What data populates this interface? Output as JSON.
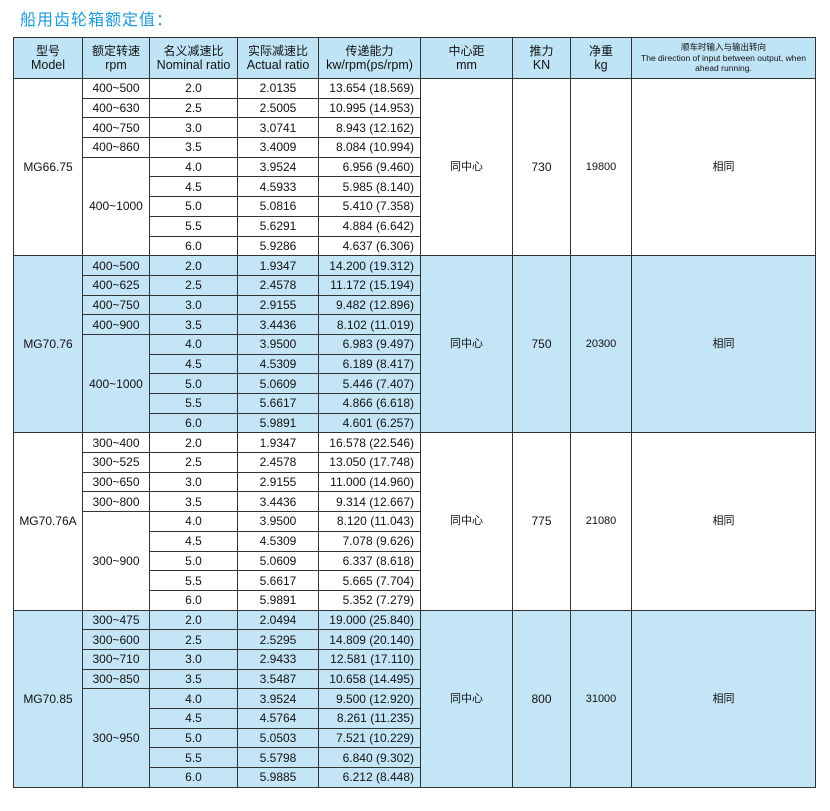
{
  "title": "船用齿轮箱额定值：",
  "header": [
    {
      "cn": "型号",
      "en": "Model"
    },
    {
      "cn": "额定转速",
      "en": "rpm"
    },
    {
      "cn": "名义减速比",
      "en": "Nominal ratio"
    },
    {
      "cn": "实际减速比",
      "en": "Actual ratio"
    },
    {
      "cn": "传递能力",
      "en": "kw/rpm(ps/rpm)"
    },
    {
      "cn": "中心距",
      "en": "mm"
    },
    {
      "cn": "推力",
      "en": "KN"
    },
    {
      "cn": "净重",
      "en": "kg"
    },
    {
      "cn": "顺车时输入与输出转向",
      "en": "The direction of input between output, when ahead running."
    }
  ],
  "blocks": [
    {
      "model": "MG66.75",
      "center": "同中心",
      "thrust": "730",
      "weight": "19800",
      "direction": "相同",
      "bg": "#ffffff",
      "rpm": [
        {
          "label": "400~500",
          "span": 1
        },
        {
          "label": "400~630",
          "span": 1
        },
        {
          "label": "400~750",
          "span": 1
        },
        {
          "label": "400~860",
          "span": 1
        },
        {
          "label": "400~1000",
          "span": 5
        }
      ],
      "rows": [
        [
          "2.0",
          "2.0135",
          "13.654 (18.569)"
        ],
        [
          "2.5",
          "2.5005",
          "10.995 (14.953)"
        ],
        [
          "3.0",
          "3.0741",
          "8.943 (12.162)"
        ],
        [
          "3.5",
          "3.4009",
          "8.084 (10.994)"
        ],
        [
          "4.0",
          "3.9524",
          "6.956 (9.460)"
        ],
        [
          "4.5",
          "4.5933",
          "5.985 (8.140)"
        ],
        [
          "5.0",
          "5.0816",
          "5.410 (7.358)"
        ],
        [
          "5.5",
          "5.6291",
          "4.884 (6.642)"
        ],
        [
          "6.0",
          "5.9286",
          "4.637 (6.306)"
        ]
      ]
    },
    {
      "model": "MG70.76",
      "center": "同中心",
      "thrust": "750",
      "weight": "20300",
      "direction": "相同",
      "bg": "#c4e5f6",
      "rpm": [
        {
          "label": "400~500",
          "span": 1
        },
        {
          "label": "400~625",
          "span": 1
        },
        {
          "label": "400~750",
          "span": 1
        },
        {
          "label": "400~900",
          "span": 1
        },
        {
          "label": "400~1000",
          "span": 5
        }
      ],
      "rows": [
        [
          "2.0",
          "1.9347",
          "14.200 (19.312)"
        ],
        [
          "2.5",
          "2.4578",
          "11.172 (15.194)"
        ],
        [
          "3.0",
          "2.9155",
          "9.482 (12.896)"
        ],
        [
          "3.5",
          "3.4436",
          "8.102 (11.019)"
        ],
        [
          "4.0",
          "3.9500",
          "6.983 (9.497)"
        ],
        [
          "4.5",
          "4.5309",
          "6.189 (8.417)"
        ],
        [
          "5.0",
          "5.0609",
          "5.446 (7.407)"
        ],
        [
          "5.5",
          "5.6617",
          "4.866 (6.618)"
        ],
        [
          "6.0",
          "5.9891",
          "4.601 (6.257)"
        ]
      ]
    },
    {
      "model": "MG70.76A",
      "center": "同中心",
      "thrust": "775",
      "weight": "21080",
      "direction": "相同",
      "bg": "#ffffff",
      "rpm": [
        {
          "label": "300~400",
          "span": 1
        },
        {
          "label": "300~525",
          "span": 1
        },
        {
          "label": "300~650",
          "span": 1
        },
        {
          "label": "300~800",
          "span": 1
        },
        {
          "label": "300~900",
          "span": 5
        }
      ],
      "rows": [
        [
          "2.0",
          "1.9347",
          "16.578 (22.546)"
        ],
        [
          "2.5",
          "2.4578",
          "13.050 (17.748)"
        ],
        [
          "3.0",
          "2.9155",
          "11.000 (14.960)"
        ],
        [
          "3.5",
          "3.4436",
          "9.314 (12.667)"
        ],
        [
          "4.0",
          "3.9500",
          "8.120 (11.043)"
        ],
        [
          "4.5",
          "4.5309",
          "7.078 (9.626)"
        ],
        [
          "5.0",
          "5.0609",
          "6.337 (8.618)"
        ],
        [
          "5.5",
          "5.6617",
          "5.665 (7.704)"
        ],
        [
          "6.0",
          "5.9891",
          "5.352 (7.279)"
        ]
      ]
    },
    {
      "model": "MG70.85",
      "center": "同中心",
      "thrust": "800",
      "weight": "31000",
      "direction": "相同",
      "bg": "#c4e5f6",
      "rpm": [
        {
          "label": "300~475",
          "span": 1
        },
        {
          "label": "300~600",
          "span": 1
        },
        {
          "label": "300~710",
          "span": 1
        },
        {
          "label": "300~850",
          "span": 1
        },
        {
          "label": "300~950",
          "span": 5
        }
      ],
      "rows": [
        [
          "2.0",
          "2.0494",
          "19.000 (25.840)"
        ],
        [
          "2.5",
          "2.5295",
          "14.809 (20.140)"
        ],
        [
          "3.0",
          "2.9433",
          "12.581 (17.110)"
        ],
        [
          "3.5",
          "3.5487",
          "10.658 (14.495)"
        ],
        [
          "4.0",
          "3.9524",
          "9.500 (12.920)"
        ],
        [
          "4.5",
          "4.5764",
          "8.261 (11.235)"
        ],
        [
          "5.0",
          "5.0503",
          "7.521 (10.229)"
        ],
        [
          "5.5",
          "5.5798",
          "6.840 (9.302)"
        ],
        [
          "6.0",
          "5.9885",
          "6.212 (8.448)"
        ]
      ]
    }
  ]
}
